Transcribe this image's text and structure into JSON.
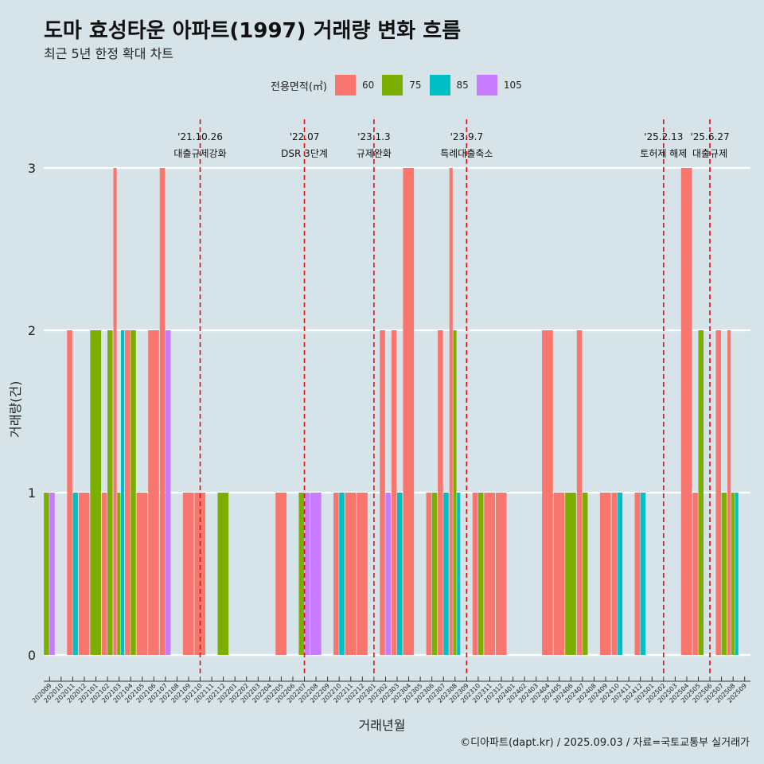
{
  "header": {
    "title": "도마 효성타운 아파트(1997) 거래량 변화 흐름",
    "subtitle": "최근 5년 한정 확대 차트"
  },
  "footer": {
    "caption": "©디아파트(dapt.kr) / 2025.09.03 / 자료=국토교통부 실거래가"
  },
  "chart_data": {
    "type": "bar",
    "xlabel": "거래년월",
    "ylabel": "거래량(건)",
    "ylim": [
      0,
      3
    ],
    "yticks": [
      0,
      1,
      2,
      3
    ],
    "grid": "horizontal",
    "legend": {
      "title": "전용면적(㎡)",
      "position": "top",
      "entries": [
        {
          "name": "60",
          "color": "#f8766d"
        },
        {
          "name": "75",
          "color": "#7cae00"
        },
        {
          "name": "85",
          "color": "#00bfc4"
        },
        {
          "name": "105",
          "color": "#c77cff"
        }
      ]
    },
    "categories": [
      "202009",
      "202010",
      "202011",
      "202012",
      "202101",
      "202102",
      "202103",
      "202104",
      "202105",
      "202106",
      "202107",
      "202108",
      "202109",
      "202110",
      "202111",
      "202112",
      "202201",
      "202202",
      "202203",
      "202204",
      "202205",
      "202206",
      "202207",
      "202208",
      "202209",
      "202210",
      "202211",
      "202212",
      "202301",
      "202302",
      "202303",
      "202304",
      "202305",
      "202306",
      "202307",
      "202308",
      "202309",
      "202310",
      "202311",
      "202312",
      "202401",
      "202402",
      "202403",
      "202404",
      "202405",
      "202406",
      "202407",
      "202408",
      "202409",
      "202410",
      "202411",
      "202412",
      "202501",
      "202502",
      "202503",
      "202504",
      "202505",
      "202506",
      "202507",
      "202508",
      "202509"
    ],
    "tick_labels_shown": [
      "202009",
      "202010",
      "202011",
      "202012",
      "202101",
      "202102",
      "202103",
      "202104",
      "202105",
      "202106",
      "202107",
      "202108",
      "202109",
      "202110",
      "202111",
      "202112",
      "202201",
      "202202",
      "202203",
      "202204",
      "202205",
      "202206",
      "202207",
      "202208",
      "202209",
      "202210",
      "202211",
      "202212",
      "202301",
      "202302",
      "202303",
      "202304",
      "202305",
      "202306",
      "202307",
      "202308",
      "202309",
      "202310",
      "202311",
      "202312",
      "202401",
      "202402",
      "202403",
      "202404",
      "202405",
      "202406",
      "202407",
      "202408",
      "202409",
      "202410",
      "202411",
      "202412",
      "202501",
      "202502",
      "202503",
      "202504",
      "202505",
      "202506",
      "202507",
      "202508",
      "202509"
    ],
    "bars": [
      {
        "month": "202009",
        "area": "75",
        "value": 1
      },
      {
        "month": "202009",
        "area": "105",
        "value": 1
      },
      {
        "month": "202011",
        "area": "60",
        "value": 2
      },
      {
        "month": "202011",
        "area": "85",
        "value": 1
      },
      {
        "month": "202012",
        "area": "60",
        "value": 1
      },
      {
        "month": "202101",
        "area": "75",
        "value": 2
      },
      {
        "month": "202102",
        "area": "60",
        "value": 1
      },
      {
        "month": "202102",
        "area": "75",
        "value": 2
      },
      {
        "month": "202103",
        "area": "60",
        "value": 3
      },
      {
        "month": "202103",
        "area": "75",
        "value": 1
      },
      {
        "month": "202103",
        "area": "85",
        "value": 2
      },
      {
        "month": "202104",
        "area": "60",
        "value": 2
      },
      {
        "month": "202104",
        "area": "75",
        "value": 2
      },
      {
        "month": "202105",
        "area": "60",
        "value": 1
      },
      {
        "month": "202106",
        "area": "60",
        "value": 2
      },
      {
        "month": "202107",
        "area": "60",
        "value": 3
      },
      {
        "month": "202107",
        "area": "105",
        "value": 2
      },
      {
        "month": "202109",
        "area": "60",
        "value": 1
      },
      {
        "month": "202110",
        "area": "60",
        "value": 1
      },
      {
        "month": "202112",
        "area": "75",
        "value": 1
      },
      {
        "month": "202205",
        "area": "60",
        "value": 1
      },
      {
        "month": "202207",
        "area": "75",
        "value": 1
      },
      {
        "month": "202207",
        "area": "105",
        "value": 1
      },
      {
        "month": "202208",
        "area": "105",
        "value": 1
      },
      {
        "month": "202210",
        "area": "60",
        "value": 1
      },
      {
        "month": "202210",
        "area": "85",
        "value": 1
      },
      {
        "month": "202211",
        "area": "60",
        "value": 1
      },
      {
        "month": "202212",
        "area": "60",
        "value": 1
      },
      {
        "month": "202302",
        "area": "60",
        "value": 2
      },
      {
        "month": "202302",
        "area": "105",
        "value": 1
      },
      {
        "month": "202303",
        "area": "60",
        "value": 2
      },
      {
        "month": "202303",
        "area": "85",
        "value": 1
      },
      {
        "month": "202304",
        "area": "60",
        "value": 3
      },
      {
        "month": "202306",
        "area": "60",
        "value": 1
      },
      {
        "month": "202306",
        "area": "75",
        "value": 1
      },
      {
        "month": "202307",
        "area": "60",
        "value": 2
      },
      {
        "month": "202307",
        "area": "85",
        "value": 1
      },
      {
        "month": "202308",
        "area": "60",
        "value": 3
      },
      {
        "month": "202308",
        "area": "75",
        "value": 2
      },
      {
        "month": "202308",
        "area": "85",
        "value": 1
      },
      {
        "month": "202310",
        "area": "60",
        "value": 1
      },
      {
        "month": "202310",
        "area": "75",
        "value": 1
      },
      {
        "month": "202311",
        "area": "60",
        "value": 1
      },
      {
        "month": "202312",
        "area": "60",
        "value": 1
      },
      {
        "month": "202404",
        "area": "60",
        "value": 2
      },
      {
        "month": "202405",
        "area": "60",
        "value": 1
      },
      {
        "month": "202406",
        "area": "75",
        "value": 1
      },
      {
        "month": "202407",
        "area": "60",
        "value": 2
      },
      {
        "month": "202407",
        "area": "75",
        "value": 1
      },
      {
        "month": "202409",
        "area": "60",
        "value": 1
      },
      {
        "month": "202410",
        "area": "60",
        "value": 1
      },
      {
        "month": "202410",
        "area": "85",
        "value": 1
      },
      {
        "month": "202412",
        "area": "60",
        "value": 1
      },
      {
        "month": "202412",
        "area": "85",
        "value": 1
      },
      {
        "month": "202504",
        "area": "60",
        "value": 3
      },
      {
        "month": "202505",
        "area": "60",
        "value": 1
      },
      {
        "month": "202505",
        "area": "75",
        "value": 2
      },
      {
        "month": "202507",
        "area": "60",
        "value": 2
      },
      {
        "month": "202507",
        "area": "75",
        "value": 1
      },
      {
        "month": "202508",
        "area": "60",
        "value": 2
      },
      {
        "month": "202508",
        "area": "75",
        "value": 1
      },
      {
        "month": "202508",
        "area": "85",
        "value": 1
      }
    ],
    "annotations": [
      {
        "month": "202110",
        "date": "'21.10.26",
        "label": "대출규제강화"
      },
      {
        "month": "202207",
        "date": "'22.07",
        "label": "DSR 3단계"
      },
      {
        "month": "202301",
        "date": "'23.1.3",
        "label": "규제완화"
      },
      {
        "month": "202309",
        "date": "'23.9.7",
        "label": "특례대출축소"
      },
      {
        "month": "202502",
        "date": "'25.2.13",
        "label": "토허제 해제"
      },
      {
        "month": "202506",
        "date": "'25.6.27",
        "label": "대출규제"
      }
    ],
    "annotation_line_color": "#e01010"
  }
}
